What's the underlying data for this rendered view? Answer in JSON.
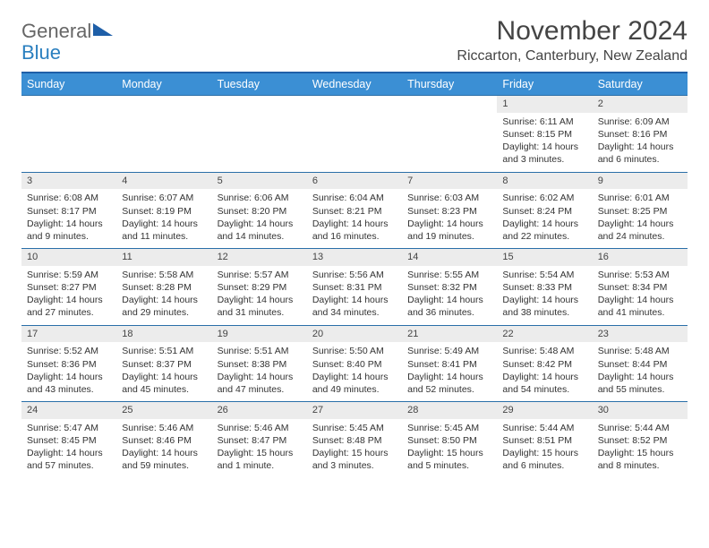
{
  "logo": {
    "word1": "General",
    "word2": "Blue"
  },
  "title": "November 2024",
  "location": "Riccarton, Canterbury, New Zealand",
  "colors": {
    "header_bg": "#3b8fd4",
    "header_border": "#1e5fa8",
    "week_border": "#2a6fa8",
    "daynum_bg": "#ececec",
    "text": "#333333",
    "logo_gray": "#666666",
    "logo_blue": "#2a7fbf"
  },
  "day_names": [
    "Sunday",
    "Monday",
    "Tuesday",
    "Wednesday",
    "Thursday",
    "Friday",
    "Saturday"
  ],
  "weeks": [
    [
      {
        "empty": true
      },
      {
        "empty": true
      },
      {
        "empty": true
      },
      {
        "empty": true
      },
      {
        "empty": true
      },
      {
        "day": "1",
        "sunrise": "Sunrise: 6:11 AM",
        "sunset": "Sunset: 8:15 PM",
        "daylight": "Daylight: 14 hours and 3 minutes."
      },
      {
        "day": "2",
        "sunrise": "Sunrise: 6:09 AM",
        "sunset": "Sunset: 8:16 PM",
        "daylight": "Daylight: 14 hours and 6 minutes."
      }
    ],
    [
      {
        "day": "3",
        "sunrise": "Sunrise: 6:08 AM",
        "sunset": "Sunset: 8:17 PM",
        "daylight": "Daylight: 14 hours and 9 minutes."
      },
      {
        "day": "4",
        "sunrise": "Sunrise: 6:07 AM",
        "sunset": "Sunset: 8:19 PM",
        "daylight": "Daylight: 14 hours and 11 minutes."
      },
      {
        "day": "5",
        "sunrise": "Sunrise: 6:06 AM",
        "sunset": "Sunset: 8:20 PM",
        "daylight": "Daylight: 14 hours and 14 minutes."
      },
      {
        "day": "6",
        "sunrise": "Sunrise: 6:04 AM",
        "sunset": "Sunset: 8:21 PM",
        "daylight": "Daylight: 14 hours and 16 minutes."
      },
      {
        "day": "7",
        "sunrise": "Sunrise: 6:03 AM",
        "sunset": "Sunset: 8:23 PM",
        "daylight": "Daylight: 14 hours and 19 minutes."
      },
      {
        "day": "8",
        "sunrise": "Sunrise: 6:02 AM",
        "sunset": "Sunset: 8:24 PM",
        "daylight": "Daylight: 14 hours and 22 minutes."
      },
      {
        "day": "9",
        "sunrise": "Sunrise: 6:01 AM",
        "sunset": "Sunset: 8:25 PM",
        "daylight": "Daylight: 14 hours and 24 minutes."
      }
    ],
    [
      {
        "day": "10",
        "sunrise": "Sunrise: 5:59 AM",
        "sunset": "Sunset: 8:27 PM",
        "daylight": "Daylight: 14 hours and 27 minutes."
      },
      {
        "day": "11",
        "sunrise": "Sunrise: 5:58 AM",
        "sunset": "Sunset: 8:28 PM",
        "daylight": "Daylight: 14 hours and 29 minutes."
      },
      {
        "day": "12",
        "sunrise": "Sunrise: 5:57 AM",
        "sunset": "Sunset: 8:29 PM",
        "daylight": "Daylight: 14 hours and 31 minutes."
      },
      {
        "day": "13",
        "sunrise": "Sunrise: 5:56 AM",
        "sunset": "Sunset: 8:31 PM",
        "daylight": "Daylight: 14 hours and 34 minutes."
      },
      {
        "day": "14",
        "sunrise": "Sunrise: 5:55 AM",
        "sunset": "Sunset: 8:32 PM",
        "daylight": "Daylight: 14 hours and 36 minutes."
      },
      {
        "day": "15",
        "sunrise": "Sunrise: 5:54 AM",
        "sunset": "Sunset: 8:33 PM",
        "daylight": "Daylight: 14 hours and 38 minutes."
      },
      {
        "day": "16",
        "sunrise": "Sunrise: 5:53 AM",
        "sunset": "Sunset: 8:34 PM",
        "daylight": "Daylight: 14 hours and 41 minutes."
      }
    ],
    [
      {
        "day": "17",
        "sunrise": "Sunrise: 5:52 AM",
        "sunset": "Sunset: 8:36 PM",
        "daylight": "Daylight: 14 hours and 43 minutes."
      },
      {
        "day": "18",
        "sunrise": "Sunrise: 5:51 AM",
        "sunset": "Sunset: 8:37 PM",
        "daylight": "Daylight: 14 hours and 45 minutes."
      },
      {
        "day": "19",
        "sunrise": "Sunrise: 5:51 AM",
        "sunset": "Sunset: 8:38 PM",
        "daylight": "Daylight: 14 hours and 47 minutes."
      },
      {
        "day": "20",
        "sunrise": "Sunrise: 5:50 AM",
        "sunset": "Sunset: 8:40 PM",
        "daylight": "Daylight: 14 hours and 49 minutes."
      },
      {
        "day": "21",
        "sunrise": "Sunrise: 5:49 AM",
        "sunset": "Sunset: 8:41 PM",
        "daylight": "Daylight: 14 hours and 52 minutes."
      },
      {
        "day": "22",
        "sunrise": "Sunrise: 5:48 AM",
        "sunset": "Sunset: 8:42 PM",
        "daylight": "Daylight: 14 hours and 54 minutes."
      },
      {
        "day": "23",
        "sunrise": "Sunrise: 5:48 AM",
        "sunset": "Sunset: 8:44 PM",
        "daylight": "Daylight: 14 hours and 55 minutes."
      }
    ],
    [
      {
        "day": "24",
        "sunrise": "Sunrise: 5:47 AM",
        "sunset": "Sunset: 8:45 PM",
        "daylight": "Daylight: 14 hours and 57 minutes."
      },
      {
        "day": "25",
        "sunrise": "Sunrise: 5:46 AM",
        "sunset": "Sunset: 8:46 PM",
        "daylight": "Daylight: 14 hours and 59 minutes."
      },
      {
        "day": "26",
        "sunrise": "Sunrise: 5:46 AM",
        "sunset": "Sunset: 8:47 PM",
        "daylight": "Daylight: 15 hours and 1 minute."
      },
      {
        "day": "27",
        "sunrise": "Sunrise: 5:45 AM",
        "sunset": "Sunset: 8:48 PM",
        "daylight": "Daylight: 15 hours and 3 minutes."
      },
      {
        "day": "28",
        "sunrise": "Sunrise: 5:45 AM",
        "sunset": "Sunset: 8:50 PM",
        "daylight": "Daylight: 15 hours and 5 minutes."
      },
      {
        "day": "29",
        "sunrise": "Sunrise: 5:44 AM",
        "sunset": "Sunset: 8:51 PM",
        "daylight": "Daylight: 15 hours and 6 minutes."
      },
      {
        "day": "30",
        "sunrise": "Sunrise: 5:44 AM",
        "sunset": "Sunset: 8:52 PM",
        "daylight": "Daylight: 15 hours and 8 minutes."
      }
    ]
  ]
}
